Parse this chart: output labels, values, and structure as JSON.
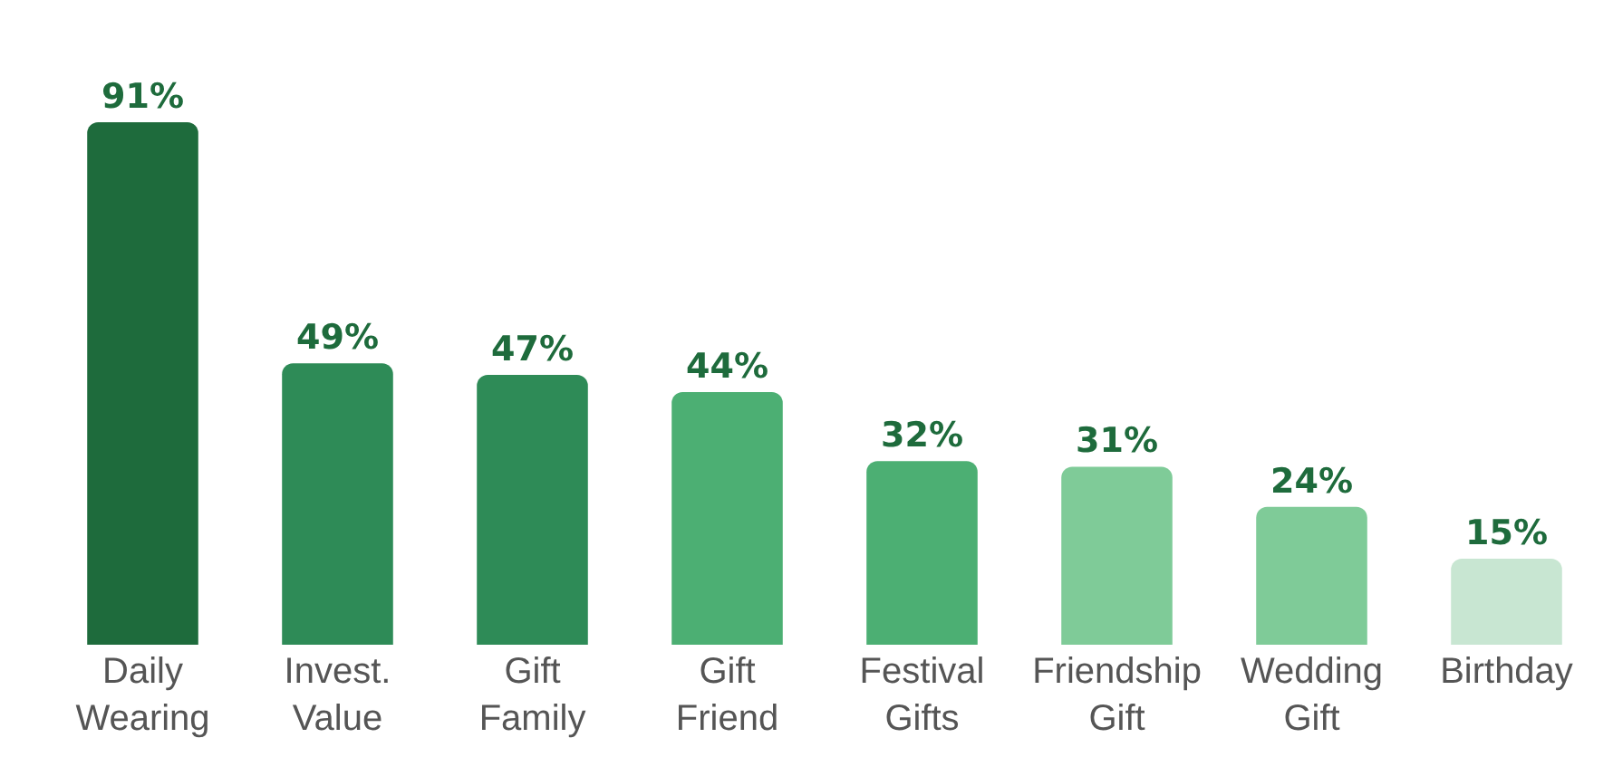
{
  "chart_data": {
    "type": "bar",
    "categories": [
      "Daily Wearing",
      "Invest. Value",
      "Gift Family",
      "Gift Friend",
      "Festival Gifts",
      "Friendship Gift",
      "Wedding Gift",
      "Birthday"
    ],
    "values": [
      91,
      49,
      47,
      44,
      32,
      31,
      24,
      15
    ],
    "value_labels": [
      "91%",
      "49%",
      "47%",
      "44%",
      "32%",
      "31%",
      "24%",
      "15%"
    ],
    "colors": [
      "#1e6b3c",
      "#2e8b57",
      "#2e8b57",
      "#4caf73",
      "#4caf73",
      "#7fcb98",
      "#7fcb98",
      "#c8e6d2"
    ],
    "grid": false,
    "legend": false
  }
}
